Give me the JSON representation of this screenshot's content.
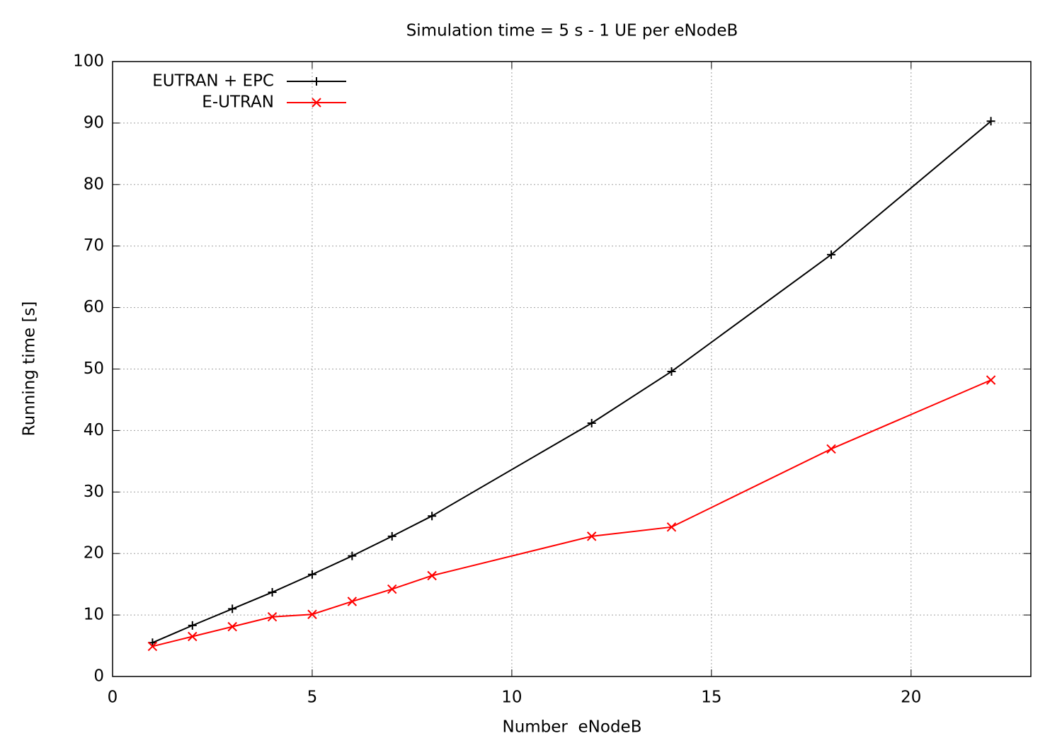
{
  "chart_data": {
    "type": "line",
    "title": "Simulation time = 5 s - 1 UE per eNodeB",
    "x_label": "Number  eNodeB",
    "y_label": "Running time [s]",
    "x": [
      1,
      2,
      3,
      4,
      5,
      6,
      7,
      8,
      12,
      14,
      18,
      22
    ],
    "series": [
      {
        "name": "EUTRAN + EPC",
        "color": "#000000",
        "marker": "plus",
        "values": [
          5.5,
          8.3,
          11,
          13.7,
          16.6,
          19.6,
          22.8,
          26.1,
          41.2,
          49.6,
          68.6,
          90.3
        ]
      },
      {
        "name": "E-UTRAN",
        "color": "#ff0000",
        "marker": "cross",
        "values": [
          4.9,
          6.5,
          8.1,
          9.7,
          10.1,
          12.2,
          14.2,
          16.4,
          22.8,
          24.3,
          37,
          48.2
        ]
      }
    ],
    "xlim": [
      0,
      23
    ],
    "xticks": [
      0,
      5,
      10,
      15,
      20
    ],
    "ylim": [
      0,
      100
    ],
    "yticks": [
      0,
      10,
      20,
      30,
      40,
      50,
      60,
      70,
      80,
      90,
      100
    ],
    "grid": true,
    "legend": "top-left"
  }
}
